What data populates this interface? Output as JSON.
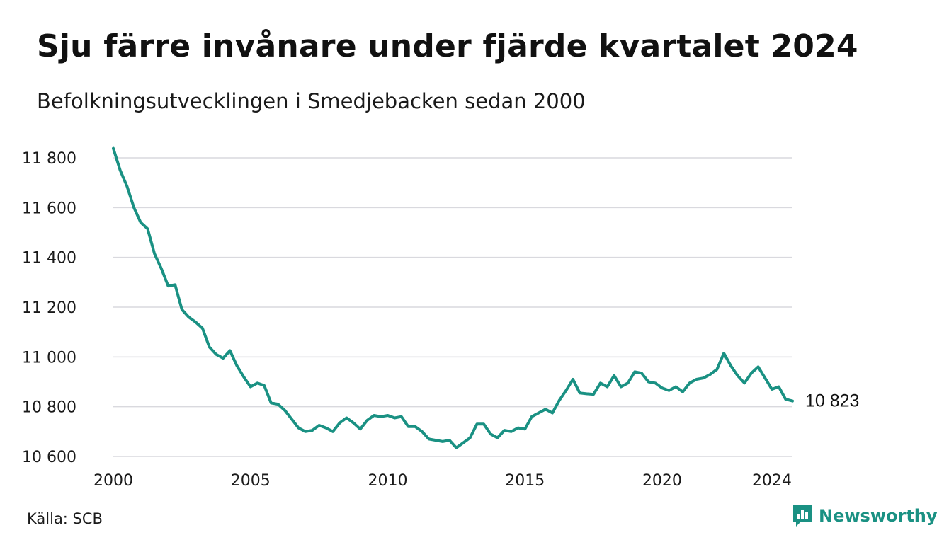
{
  "title": "Sju färre invånare under fjärde kvartalet 2024",
  "subtitle": "Befolkningsutvecklingen i Smedjebacken sedan 2000",
  "source": "Källa: SCB",
  "brand": {
    "name": "Newsworthy",
    "icon": "chart-speech-bubble-icon",
    "color": "#1a9183"
  },
  "colors": {
    "line": "#1a9183",
    "grid": "#d9d9de"
  },
  "chart_data": {
    "type": "line",
    "title": "Sju färre invånare under fjärde kvartalet 2024",
    "subtitle": "Befolkningsutvecklingen i Smedjebacken sedan 2000",
    "xlabel": "",
    "ylabel": "",
    "ylim": [
      10600,
      11800
    ],
    "xlim": [
      2000.0,
      2024.75
    ],
    "grid": true,
    "legend": "none",
    "y_ticks": [
      10600,
      10800,
      11000,
      11200,
      11400,
      11600,
      11800
    ],
    "y_tick_labels": [
      "10 600",
      "10 800",
      "11 000",
      "11 200",
      "11 400",
      "11 600",
      "11 800"
    ],
    "x_ticks": [
      2000,
      2005,
      2010,
      2015,
      2020,
      2024
    ],
    "x_tick_labels": [
      "2000",
      "2005",
      "2010",
      "2015",
      "2020",
      "2024"
    ],
    "end_label": "10 823",
    "series": [
      {
        "frequency": "quarterly, Q1 2000 – Q4 2024",
        "values": [
          11838,
          11750,
          11685,
          11600,
          11540,
          11515,
          11415,
          11355,
          11285,
          11290,
          11190,
          11160,
          11140,
          11115,
          11040,
          11010,
          10995,
          11025,
          10965,
          10920,
          10880,
          10895,
          10885,
          10815,
          10810,
          10785,
          10750,
          10715,
          10700,
          10705,
          10725,
          10715,
          10700,
          10735,
          10755,
          10735,
          10710,
          10745,
          10765,
          10760,
          10765,
          10755,
          10760,
          10720,
          10720,
          10700,
          10670,
          10665,
          10660,
          10665,
          10635,
          10655,
          10675,
          10730,
          10730,
          10690,
          10675,
          10705,
          10700,
          10715,
          10710,
          10760,
          10775,
          10790,
          10775,
          10825,
          10865,
          10910,
          10855,
          10852,
          10850,
          10895,
          10880,
          10925,
          10880,
          10895,
          10940,
          10935,
          10900,
          10895,
          10875,
          10865,
          10880,
          10860,
          10895,
          10910,
          10915,
          10930,
          10950,
          11015,
          10965,
          10925,
          10895,
          10935,
          10960,
          10915,
          10870,
          10880,
          10830,
          10823
        ]
      }
    ]
  }
}
